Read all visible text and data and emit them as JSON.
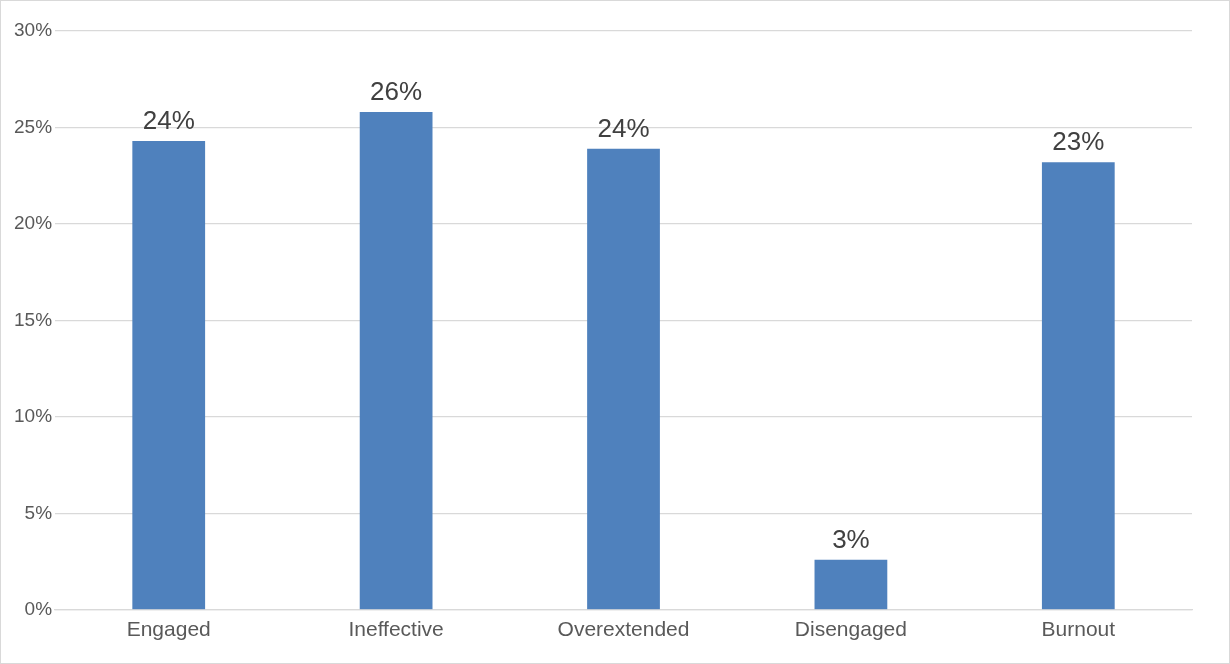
{
  "chart_data": {
    "type": "bar",
    "categories": [
      "Engaged",
      "Ineffective",
      "Overextended",
      "Disengaged",
      "Burnout"
    ],
    "values": [
      24.3,
      25.8,
      23.9,
      2.6,
      23.2
    ],
    "color": "#4f81bd",
    "value_labels": [
      "24%",
      "26%",
      "24%",
      "3%",
      "23%"
    ],
    "ylim": [
      0,
      30
    ],
    "yticks": [
      {
        "value": 0,
        "label": "0%"
      },
      {
        "value": 5,
        "label": "5%"
      },
      {
        "value": 10,
        "label": "10%"
      },
      {
        "value": 15,
        "label": "15%"
      },
      {
        "value": 20,
        "label": "20%"
      },
      {
        "value": 25,
        "label": "25%"
      },
      {
        "value": 30,
        "label": "30%"
      }
    ],
    "grid": "y",
    "legend": false
  }
}
